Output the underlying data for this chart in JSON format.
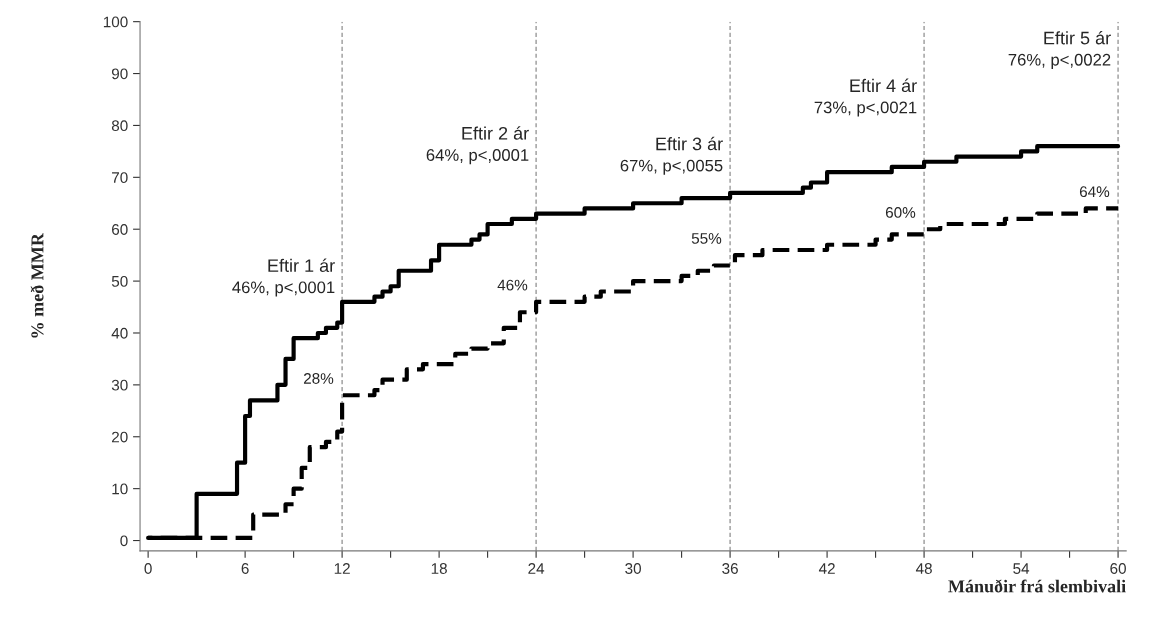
{
  "chart_data": {
    "type": "step",
    "xlabel": "Mánuðir frá slembivali",
    "ylabel": "% með MMR",
    "xlim": [
      -0.5,
      60.5
    ],
    "ylim": [
      -2,
      100
    ],
    "xticks": [
      0,
      {
        "value": 3,
        "label": null
      },
      6,
      {
        "value": 9,
        "label": null
      },
      12,
      {
        "value": 15,
        "label": null
      },
      18,
      {
        "value": 21,
        "label": null
      },
      24,
      {
        "value": 27,
        "label": null
      },
      30,
      {
        "value": 33,
        "label": null
      },
      36,
      {
        "value": 39,
        "label": null
      },
      42,
      {
        "value": 45,
        "label": null
      },
      48,
      {
        "value": 51,
        "label": null
      },
      54,
      {
        "value": 57,
        "label": null
      },
      60
    ],
    "yticks": [
      0,
      10,
      20,
      30,
      40,
      50,
      60,
      70,
      80,
      90,
      100
    ],
    "grid": false,
    "series": [
      {
        "color": "#000000",
        "line_style": "solid",
        "x": [
          0,
          3,
          5.5,
          6,
          6.3,
          8,
          8.5,
          9,
          10.5,
          11,
          11.7,
          12,
          14,
          14.5,
          15,
          15.5,
          17.5,
          18,
          20,
          20.5,
          21,
          22.5,
          24,
          27,
          30,
          33,
          36,
          40.5,
          41,
          42,
          46,
          48,
          50,
          54,
          55,
          60
        ],
        "values": [
          0.5,
          9,
          15,
          24,
          27,
          30,
          35,
          39,
          40,
          41,
          42,
          46,
          47,
          48,
          49,
          52,
          54,
          57,
          58,
          59,
          61,
          62,
          63,
          64,
          65,
          66,
          67,
          68,
          69,
          71,
          72,
          73,
          74,
          75,
          76,
          76
        ]
      },
      {
        "color": "#000000",
        "line_style": "dashed",
        "x": [
          0,
          3,
          5.5,
          6.5,
          8.5,
          9,
          9.5,
          10,
          11,
          11.7,
          12,
          14,
          14.5,
          16,
          17,
          19,
          20,
          21,
          22,
          23,
          24,
          26,
          27,
          28,
          30,
          33,
          34,
          35,
          36.3,
          38,
          42,
          45,
          46,
          48,
          49,
          53,
          55,
          58,
          60
        ],
        "values": [
          0.5,
          0.5,
          0.5,
          5,
          7,
          10,
          14,
          18,
          19,
          21,
          28,
          29,
          31,
          33,
          34,
          36,
          37,
          38,
          41,
          44,
          46,
          46,
          47,
          48,
          50,
          51,
          52,
          53,
          55,
          56,
          57,
          58,
          59,
          60,
          61,
          62,
          63,
          64,
          64
        ]
      }
    ],
    "ref_lines": [
      {
        "axis": "x",
        "value": 12,
        "label": "Eftir 1 ár",
        "color": "#999999",
        "line_style": "dashed"
      },
      {
        "axis": "x",
        "value": 24,
        "label": "Eftir 2 ár",
        "color": "#999999",
        "line_style": "dashed"
      },
      {
        "axis": "x",
        "value": 36,
        "label": "Eftir 3 ár",
        "color": "#999999",
        "line_style": "dashed"
      },
      {
        "axis": "x",
        "value": 48,
        "label": "Eftir 4 ár",
        "color": "#999999",
        "line_style": "dashed"
      },
      {
        "axis": "x",
        "value": 60,
        "label": "Eftir 5 ár",
        "color": "#999999",
        "line_style": "dashed"
      }
    ],
    "annotations": [
      "46%, p<,0001",
      "64%, p<,0001",
      "67%, p<,0055",
      "73%, p<,0021",
      "76%, p<,0022",
      {
        "text": "28%",
        "x": 12,
        "y": 28
      },
      {
        "text": "46%",
        "x": 24,
        "y": 46
      },
      {
        "text": "55%",
        "x": 36,
        "y": 55
      },
      {
        "text": "60%",
        "x": 48,
        "y": 60
      },
      {
        "text": "64%",
        "x": 60,
        "y": 64
      }
    ]
  }
}
